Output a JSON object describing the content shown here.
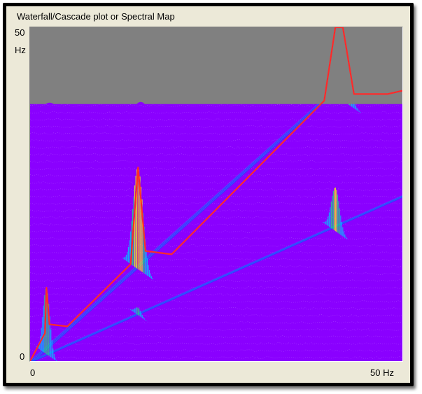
{
  "window": {
    "title": "Waterfall/Cascade plot or Spectral Map"
  },
  "axes": {
    "y_top": "50",
    "y_unit": "Hz",
    "y_bottom": "0",
    "x_left": "0",
    "x_right": "50 Hz"
  },
  "colors": {
    "window_bg": "#ece9d8",
    "plot_bg": "#8a00ff",
    "mask_gray": "#808080",
    "envelope": "#ff2a2a",
    "frame": "#000000"
  },
  "chart_data": {
    "type": "heatmap",
    "title": "Waterfall/Cascade plot or Spectral Map",
    "xlabel": "Hz",
    "ylabel": "Hz",
    "xlim": [
      0,
      50
    ],
    "ylim": [
      0,
      50
    ],
    "order_lines": [
      {
        "order": 1
      },
      {
        "order": 0.5
      }
    ],
    "peaks": [
      {
        "x": 2.2,
        "y": 11,
        "amplitude": 0.3
      },
      {
        "x": 14.5,
        "y": 29,
        "amplitude": 0.6
      },
      {
        "x": 41.5,
        "y": 50,
        "amplitude": 1.0
      },
      {
        "x": 41.0,
        "y": 26,
        "amplitude": 0.45
      },
      {
        "x": 14.5,
        "y": 8,
        "amplitude": 0.25
      }
    ],
    "envelope_points": [
      {
        "x": 0,
        "y": 0
      },
      {
        "x": 2.0,
        "y": 4.2
      },
      {
        "x": 2.2,
        "y": 11
      },
      {
        "x": 2.6,
        "y": 5.5
      },
      {
        "x": 5,
        "y": 5.2
      },
      {
        "x": 13.5,
        "y": 14.5
      },
      {
        "x": 14.5,
        "y": 29
      },
      {
        "x": 15.5,
        "y": 16.5
      },
      {
        "x": 19,
        "y": 16
      },
      {
        "x": 39.5,
        "y": 39
      },
      {
        "x": 41.0,
        "y": 50
      },
      {
        "x": 42.0,
        "y": 50
      },
      {
        "x": 43.5,
        "y": 40
      },
      {
        "x": 48,
        "y": 40
      },
      {
        "x": 50,
        "y": 40.5
      }
    ],
    "mask_level": 38.5,
    "grid": false
  }
}
